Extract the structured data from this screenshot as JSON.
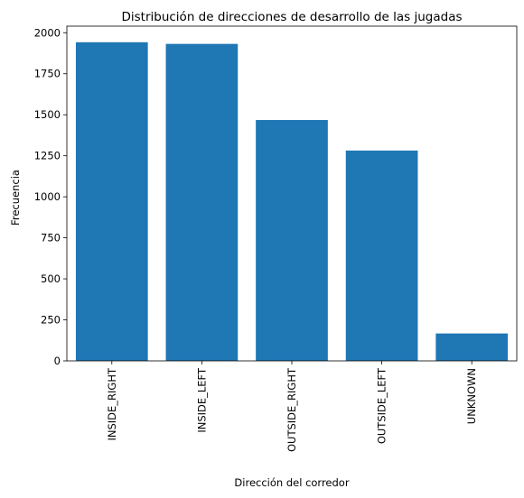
{
  "chart_data": {
    "type": "bar",
    "title": "Distribución de direcciones de desarrollo de las jugadas",
    "xlabel": "Dirección del corredor",
    "ylabel": "Frecuencia",
    "categories": [
      "INSIDE_RIGHT",
      "INSIDE_LEFT",
      "OUTSIDE_RIGHT",
      "OUTSIDE_LEFT",
      "UNKNOWN"
    ],
    "values": [
      1942,
      1932,
      1468,
      1282,
      167
    ],
    "ylim": [
      0,
      2040
    ],
    "yticks": [
      0,
      250,
      500,
      750,
      1000,
      1250,
      1500,
      1750,
      2000
    ],
    "bar_color": "#1f77b4",
    "grid": false,
    "legend": "none"
  }
}
